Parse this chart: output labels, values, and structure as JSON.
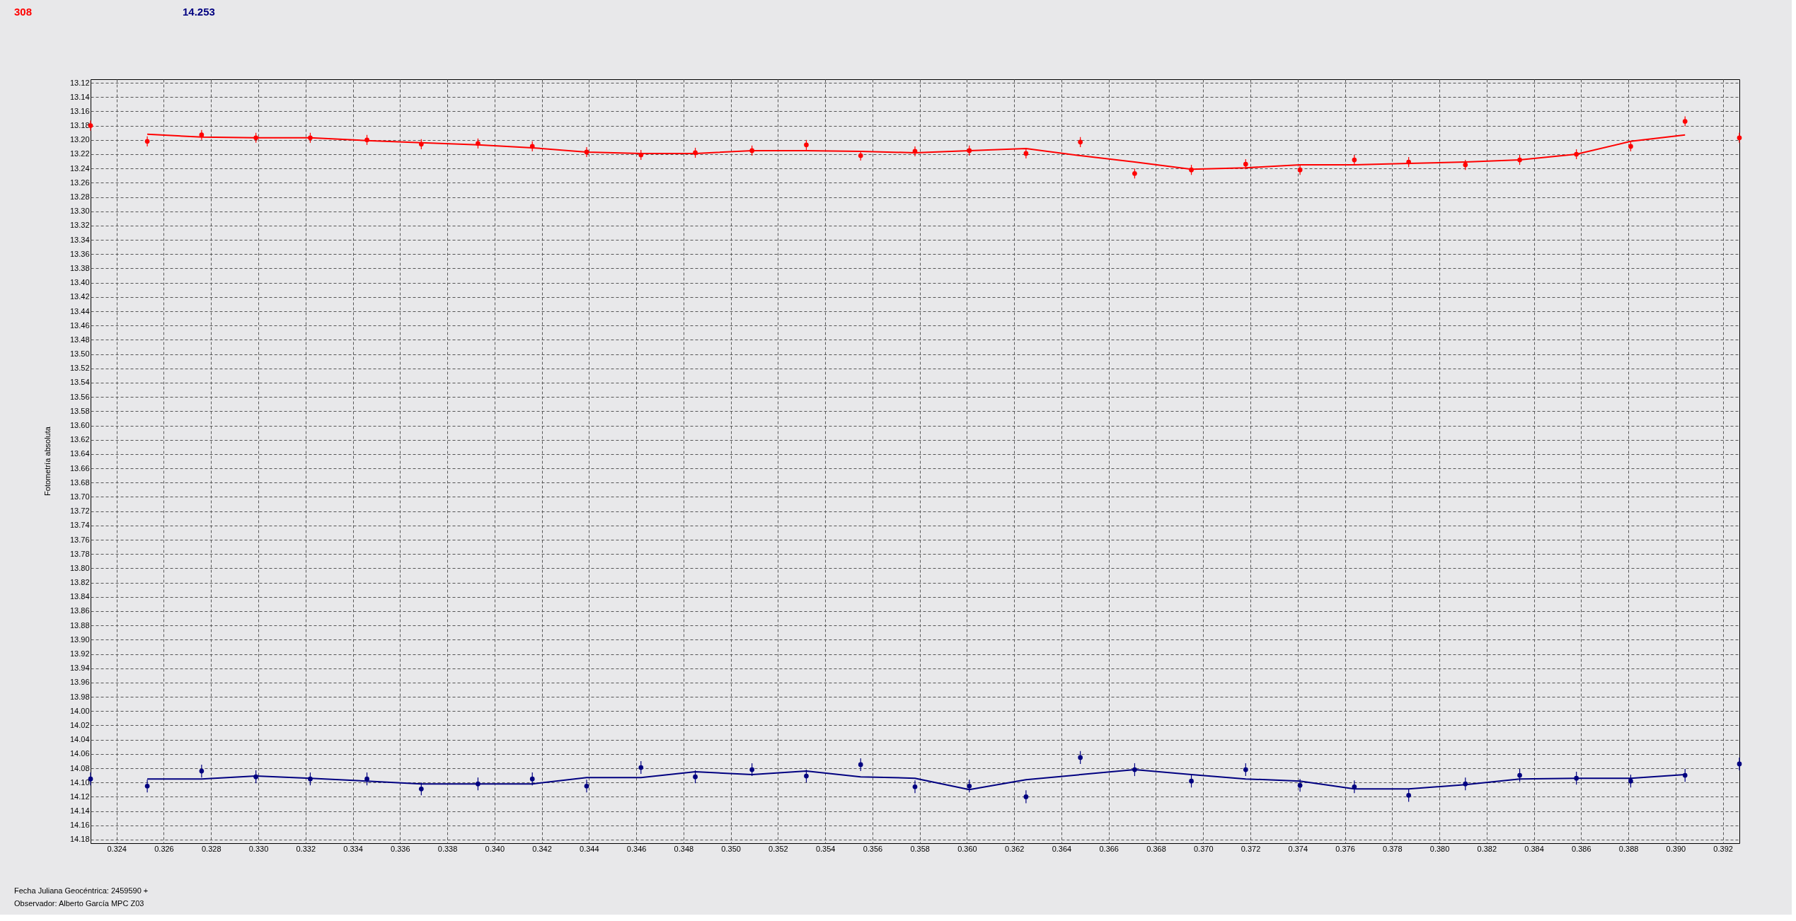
{
  "chart_data": {
    "type": "scatter",
    "xlabel": "Fecha Juliana Geocéntrica: 2459590 +",
    "ylabel": "Fotometría absoluta",
    "annotations": [
      "308",
      "14.253",
      "Observador: Alberto García MPC Z03"
    ],
    "x": [
      0.3229,
      0.3253,
      0.3276,
      0.3299,
      0.3322,
      0.3346,
      0.3369,
      0.3393,
      0.3416,
      0.3439,
      0.3462,
      0.3485,
      0.3509,
      0.3532,
      0.3555,
      0.3578,
      0.3601,
      0.3625,
      0.3648,
      0.3671,
      0.3695,
      0.3718,
      0.3741,
      0.3764,
      0.3787,
      0.3811,
      0.3834,
      0.3858,
      0.3881,
      0.3904,
      0.3927
    ],
    "series": [
      {
        "type": "scatter",
        "color": "#ff0000",
        "values": [
          13.18,
          13.202,
          13.193,
          13.197,
          13.197,
          13.2,
          13.206,
          13.205,
          13.209,
          13.217,
          13.221,
          13.218,
          13.215,
          13.207,
          13.222,
          13.216,
          13.215,
          13.219,
          13.203,
          13.247,
          13.242,
          13.234,
          13.242,
          13.228,
          13.231,
          13.235,
          13.228,
          13.22,
          13.209,
          13.174,
          13.197
        ],
        "errors": [
          0.007,
          0.007,
          0.007,
          0.007,
          0.007,
          0.007,
          0.007,
          0.007,
          0.007,
          0.007,
          0.007,
          0.007,
          0.007,
          0.007,
          0.007,
          0.007,
          0.007,
          0.007,
          0.007,
          0.007,
          0.007,
          0.007,
          0.007,
          0.007,
          0.007,
          0.007,
          0.007,
          0.007,
          0.007,
          0.007,
          0.007
        ]
      },
      {
        "type": "line",
        "marker": "none",
        "color": "#ff0000",
        "x": [
          0.3253,
          0.3276,
          0.3299,
          0.3322,
          0.3346,
          0.3369,
          0.3393,
          0.3416,
          0.3439,
          0.3462,
          0.3485,
          0.3509,
          0.3532,
          0.3555,
          0.3578,
          0.3601,
          0.3625,
          0.3648,
          0.3671,
          0.3695,
          0.3718,
          0.3741,
          0.3764,
          0.3787,
          0.3811,
          0.3834,
          0.3858,
          0.3881,
          0.3904
        ],
        "values": [
          13.192,
          13.196,
          13.197,
          13.197,
          13.201,
          13.204,
          13.207,
          13.211,
          13.217,
          13.219,
          13.219,
          13.215,
          13.215,
          13.216,
          13.218,
          13.215,
          13.212,
          13.222,
          13.231,
          13.241,
          13.239,
          13.235,
          13.235,
          13.233,
          13.231,
          13.228,
          13.22,
          13.202,
          13.193
        ]
      },
      {
        "type": "scatter",
        "color": "#000080",
        "values": [
          14.095,
          14.105,
          14.084,
          14.092,
          14.095,
          14.095,
          14.109,
          14.102,
          14.095,
          14.105,
          14.079,
          14.092,
          14.082,
          14.091,
          14.075,
          14.106,
          14.105,
          14.12,
          14.065,
          14.082,
          14.098,
          14.082,
          14.104,
          14.106,
          14.118,
          14.102,
          14.09,
          14.094,
          14.098,
          14.09,
          14.074
        ],
        "errors": [
          0.009,
          0.009,
          0.009,
          0.009,
          0.009,
          0.009,
          0.009,
          0.009,
          0.009,
          0.009,
          0.009,
          0.009,
          0.009,
          0.009,
          0.009,
          0.009,
          0.009,
          0.009,
          0.009,
          0.009,
          0.009,
          0.009,
          0.009,
          0.009,
          0.009,
          0.009,
          0.009,
          0.009,
          0.009,
          0.009,
          0.009
        ]
      },
      {
        "type": "line",
        "marker": "none",
        "color": "#000080",
        "x": [
          0.3253,
          0.3276,
          0.3299,
          0.3322,
          0.3346,
          0.3369,
          0.3393,
          0.3416,
          0.3439,
          0.3462,
          0.3485,
          0.3509,
          0.3532,
          0.3555,
          0.3578,
          0.3601,
          0.3625,
          0.3648,
          0.3671,
          0.3695,
          0.3718,
          0.3741,
          0.3764,
          0.3787,
          0.3811,
          0.3834,
          0.3858,
          0.3881,
          0.3904
        ],
        "values": [
          14.095,
          14.095,
          14.091,
          14.094,
          14.098,
          14.102,
          14.102,
          14.102,
          14.093,
          14.093,
          14.085,
          14.089,
          14.084,
          14.092,
          14.094,
          14.11,
          14.096,
          14.089,
          14.082,
          14.089,
          14.095,
          14.098,
          14.109,
          14.109,
          14.103,
          14.095,
          14.094,
          14.094,
          14.089
        ]
      }
    ],
    "xlim": [
      0.3229,
      0.3927
    ],
    "ylim": [
      14.185,
      13.115
    ],
    "xticks": [
      0.324,
      0.326,
      0.328,
      {
        "value": 0.33,
        "label": "0.330"
      },
      0.332,
      0.334,
      0.336,
      0.338,
      {
        "value": 0.34,
        "label": "0.340"
      },
      0.342,
      0.344,
      0.346,
      0.348,
      {
        "value": 0.35,
        "label": "0.350"
      },
      0.352,
      0.354,
      0.356,
      0.358,
      {
        "value": 0.36,
        "label": "0.360"
      },
      0.362,
      0.364,
      0.366,
      0.368,
      {
        "value": 0.37,
        "label": "0.370"
      },
      0.372,
      0.374,
      0.376,
      0.378,
      {
        "value": 0.38,
        "label": "0.380"
      },
      0.382,
      0.384,
      0.386,
      0.388,
      {
        "value": 0.39,
        "label": "0.390"
      },
      0.392
    ],
    "yticks": [
      13.12,
      13.14,
      13.16,
      13.18,
      {
        "value": 13.2,
        "label": "13.20"
      },
      13.22,
      13.24,
      13.26,
      13.28,
      {
        "value": 13.3,
        "label": "13.30"
      },
      13.32,
      13.34,
      13.36,
      13.38,
      {
        "value": 13.4,
        "label": "13.40"
      },
      13.42,
      13.44,
      13.46,
      13.48,
      {
        "value": 13.5,
        "label": "13.50"
      },
      13.52,
      13.54,
      13.56,
      13.58,
      {
        "value": 13.6,
        "label": "13.60"
      },
      13.62,
      13.64,
      13.66,
      13.68,
      {
        "value": 13.7,
        "label": "13.70"
      },
      13.72,
      13.74,
      13.76,
      13.78,
      {
        "value": 13.8,
        "label": "13.80"
      },
      13.82,
      13.84,
      13.86,
      13.88,
      {
        "value": 13.9,
        "label": "13.90"
      },
      13.92,
      13.94,
      13.96,
      13.98,
      {
        "value": 14.0,
        "label": "14.00"
      },
      14.02,
      14.04,
      14.06,
      14.08,
      {
        "value": 14.1,
        "label": "14.10"
      },
      14.12,
      14.14,
      14.16,
      14.18
    ],
    "grid": true,
    "marker": "circle",
    "line_style": "solid"
  }
}
